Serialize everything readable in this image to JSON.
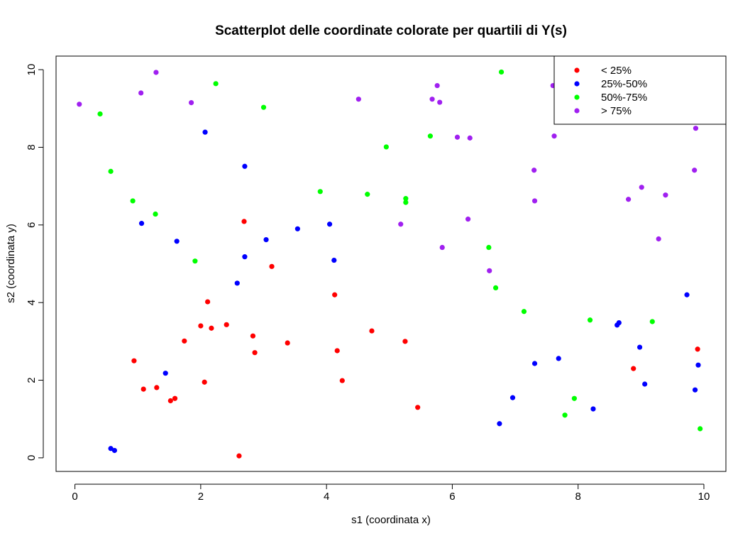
{
  "chart_data": {
    "type": "scatter",
    "title": "Scatterplot delle coordinate colorate per quartili di Y(s)",
    "xlabel": "s1 (coordinata x)",
    "ylabel": "s2 (coordinata y)",
    "xlim": [
      -0.3,
      10.35
    ],
    "ylim": [
      -0.35,
      10.35
    ],
    "xticks": [
      0,
      2,
      4,
      6,
      8,
      10
    ],
    "yticks": [
      0,
      2,
      4,
      6,
      8,
      10
    ],
    "legend_position": "top-right",
    "series": [
      {
        "name": "< 25%",
        "color": "#ff0000",
        "points": [
          [
            0.94,
            2.5
          ],
          [
            1.09,
            1.77
          ],
          [
            1.3,
            1.81
          ],
          [
            1.52,
            1.47
          ],
          [
            1.59,
            1.53
          ],
          [
            1.74,
            3.01
          ],
          [
            2.0,
            3.4
          ],
          [
            2.06,
            1.95
          ],
          [
            2.11,
            4.02
          ],
          [
            2.17,
            3.34
          ],
          [
            2.41,
            3.43
          ],
          [
            2.61,
            0.05
          ],
          [
            2.69,
            6.09
          ],
          [
            2.83,
            3.14
          ],
          [
            2.86,
            2.71
          ],
          [
            3.13,
            4.93
          ],
          [
            3.38,
            2.96
          ],
          [
            4.13,
            4.2
          ],
          [
            4.17,
            2.76
          ],
          [
            4.25,
            1.99
          ],
          [
            4.72,
            3.27
          ],
          [
            5.25,
            3.0
          ],
          [
            5.45,
            1.3
          ],
          [
            8.88,
            2.3
          ],
          [
            9.9,
            2.8
          ]
        ]
      },
      {
        "name": "25%-50%",
        "color": "#0000ff",
        "points": [
          [
            0.57,
            0.24
          ],
          [
            0.63,
            0.19
          ],
          [
            1.06,
            6.04
          ],
          [
            1.44,
            2.18
          ],
          [
            1.62,
            5.58
          ],
          [
            2.07,
            8.39
          ],
          [
            2.58,
            4.5
          ],
          [
            2.7,
            7.51
          ],
          [
            2.7,
            5.18
          ],
          [
            3.04,
            5.62
          ],
          [
            3.54,
            5.9
          ],
          [
            4.05,
            6.02
          ],
          [
            4.12,
            5.09
          ],
          [
            6.75,
            0.88
          ],
          [
            6.96,
            1.55
          ],
          [
            7.31,
            2.43
          ],
          [
            7.69,
            2.56
          ],
          [
            8.24,
            1.26
          ],
          [
            8.62,
            3.42
          ],
          [
            8.65,
            3.48
          ],
          [
            8.98,
            2.85
          ],
          [
            9.06,
            1.9
          ],
          [
            9.73,
            4.2
          ],
          [
            9.86,
            1.75
          ],
          [
            9.91,
            2.39
          ]
        ]
      },
      {
        "name": "50%-75%",
        "color": "#00ff00",
        "points": [
          [
            0.4,
            8.86
          ],
          [
            0.57,
            7.38
          ],
          [
            0.92,
            6.62
          ],
          [
            1.28,
            6.28
          ],
          [
            1.91,
            5.07
          ],
          [
            2.24,
            9.64
          ],
          [
            3.0,
            9.03
          ],
          [
            3.9,
            6.86
          ],
          [
            4.65,
            6.79
          ],
          [
            4.95,
            8.01
          ],
          [
            5.26,
            6.68
          ],
          [
            5.26,
            6.58
          ],
          [
            5.65,
            8.29
          ],
          [
            6.58,
            5.42
          ],
          [
            6.69,
            4.38
          ],
          [
            6.78,
            9.94
          ],
          [
            7.14,
            3.77
          ],
          [
            7.79,
            1.1
          ],
          [
            7.94,
            1.53
          ],
          [
            8.19,
            3.55
          ],
          [
            9.18,
            3.51
          ],
          [
            9.94,
            0.75
          ]
        ]
      },
      {
        "name": "> 75%",
        "color": "#a020f0",
        "points": [
          [
            0.07,
            9.11
          ],
          [
            1.05,
            9.4
          ],
          [
            1.29,
            9.93
          ],
          [
            1.85,
            9.15
          ],
          [
            4.51,
            9.24
          ],
          [
            5.18,
            6.02
          ],
          [
            5.68,
            9.24
          ],
          [
            5.76,
            9.59
          ],
          [
            5.8,
            9.16
          ],
          [
            5.84,
            5.42
          ],
          [
            6.08,
            8.26
          ],
          [
            6.25,
            6.15
          ],
          [
            6.28,
            8.24
          ],
          [
            6.59,
            4.82
          ],
          [
            7.3,
            7.41
          ],
          [
            7.31,
            6.62
          ],
          [
            7.6,
            9.59
          ],
          [
            7.62,
            8.29
          ],
          [
            8.8,
            6.66
          ],
          [
            9.01,
            6.97
          ],
          [
            9.28,
            5.64
          ],
          [
            9.39,
            6.77
          ],
          [
            9.85,
            7.41
          ],
          [
            9.87,
            8.49
          ]
        ]
      }
    ]
  }
}
